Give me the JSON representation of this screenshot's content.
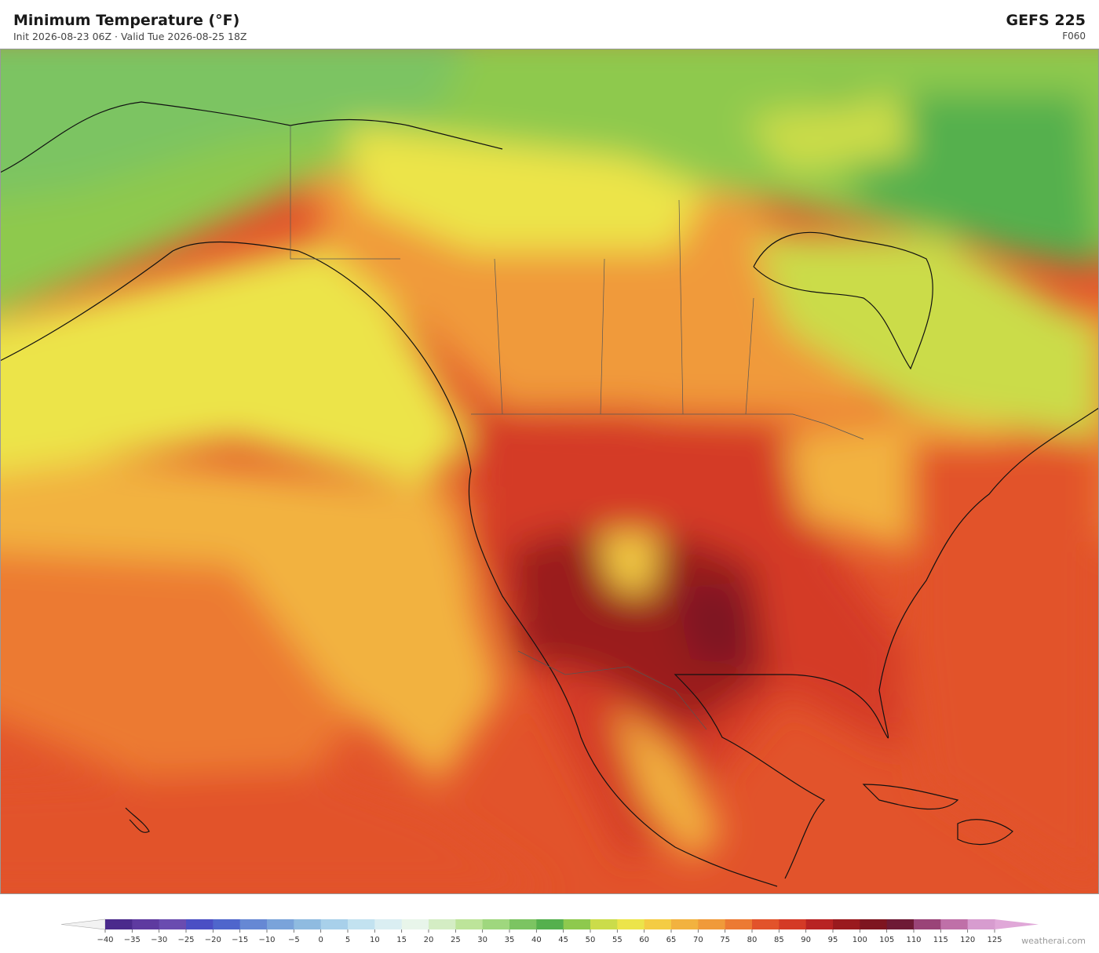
{
  "header": {
    "title": "Minimum Temperature  (°F)",
    "subtitle": "Init 2026-08-23 06Z  ·  Valid Tue 2026-08-25 18Z",
    "model": "GEFS  225",
    "forecast_hour": "F060"
  },
  "colorbar": {
    "ticks": [
      {
        "value": -40,
        "label": "−40"
      },
      {
        "value": -35,
        "label": "−35"
      },
      {
        "value": -30,
        "label": "−30"
      },
      {
        "value": -25,
        "label": "−25"
      },
      {
        "value": -20,
        "label": "−20"
      },
      {
        "value": -15,
        "label": "−15"
      },
      {
        "value": -10,
        "label": "−10"
      },
      {
        "value": -5,
        "label": "−5"
      },
      0,
      5,
      10,
      15,
      20,
      25,
      30,
      35,
      40,
      45,
      50,
      55,
      60,
      65,
      70,
      75,
      80,
      85,
      90,
      95,
      100,
      105,
      110,
      115,
      120,
      125
    ],
    "colors": [
      "#4b2a8c",
      "#5e3aa0",
      "#6a4cb0",
      "#4b4fc4",
      "#4f66cc",
      "#6688d4",
      "#7aa3da",
      "#8fbbe0",
      "#a8d0ea",
      "#c2e2f0",
      "#daeef2",
      "#e8f5ea",
      "#d4edc4",
      "#bde49a",
      "#9fd77e",
      "#7cc462",
      "#55b04e",
      "#8ec94e",
      "#cbdc4a",
      "#ece44a",
      "#f4cc44",
      "#f2b23f",
      "#f09a3a",
      "#ec7a33",
      "#e2532b",
      "#d43a26",
      "#b82323",
      "#9a1a1e",
      "#7e1520",
      "#6e1a35",
      "#9a4478",
      "#bf70a8",
      "#d79ccf"
    ],
    "under_color": "#f2f2f2",
    "over_color": "#e0a8d8"
  },
  "watermark": "weatherai.com"
}
